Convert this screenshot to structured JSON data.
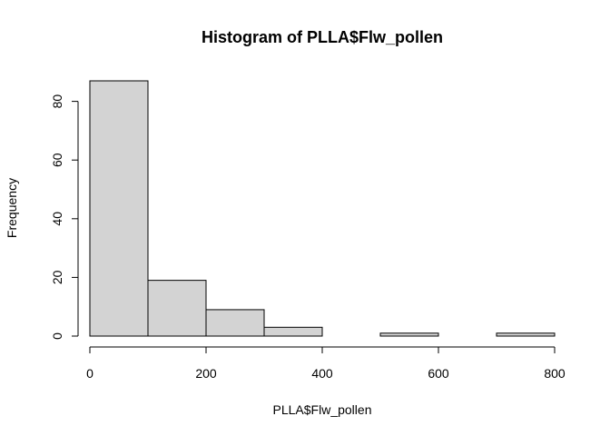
{
  "chart_data": {
    "type": "bar",
    "title": "Histogram of PLLA$Flw_pollen",
    "xlabel": "PLLA$Flw_pollen",
    "ylabel": "Frequency",
    "bins": [
      {
        "from": 0,
        "to": 100,
        "count": 87
      },
      {
        "from": 100,
        "to": 200,
        "count": 19
      },
      {
        "from": 200,
        "to": 300,
        "count": 9
      },
      {
        "from": 300,
        "to": 400,
        "count": 3
      },
      {
        "from": 400,
        "to": 500,
        "count": 0
      },
      {
        "from": 500,
        "to": 600,
        "count": 1
      },
      {
        "from": 600,
        "to": 700,
        "count": 0
      },
      {
        "from": 700,
        "to": 800,
        "count": 1
      }
    ],
    "x_ticks": [
      0,
      200,
      400,
      600,
      800
    ],
    "y_ticks": [
      0,
      20,
      40,
      60,
      80
    ],
    "xlim": [
      0,
      800
    ],
    "ylim": [
      0,
      87
    ],
    "grid": false,
    "legend": "none"
  }
}
